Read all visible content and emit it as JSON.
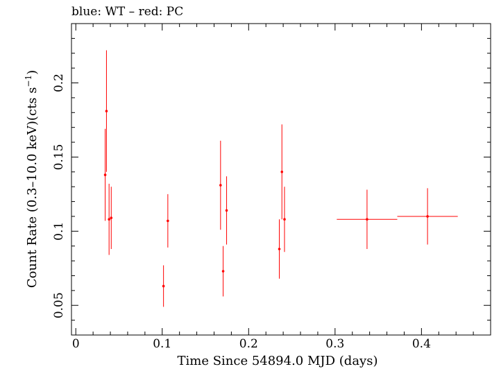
{
  "chart_data": {
    "type": "scatter",
    "title": "blue: WT – red: PC",
    "xlabel": "Time Since 54894.0 MJD (days)",
    "ylabel_main": "Count Rate (0.3–10.0 keV)(cts s",
    "ylabel_sup": "−1",
    "ylabel_end": ")",
    "xlim": [
      -0.005,
      0.48
    ],
    "ylim": [
      0.03,
      0.24
    ],
    "x_ticks": [
      0,
      0.1,
      0.2,
      0.3,
      0.4
    ],
    "x_tick_labels": [
      "0",
      "0.1",
      "0.2",
      "0.3",
      "0.4"
    ],
    "y_ticks": [
      0.05,
      0.1,
      0.15,
      0.2
    ],
    "y_tick_labels": [
      "0.05",
      "0.1",
      "0.15",
      "0.2"
    ],
    "series_color": "#ff0000",
    "series": [
      {
        "points": [
          {
            "x": 0.034,
            "y": 0.138,
            "xerr_lo": 0.0005,
            "xerr_hi": 0.0005,
            "yerr_lo": 0.031,
            "yerr_hi": 0.031
          },
          {
            "x": 0.0355,
            "y": 0.181,
            "xerr_lo": 0.0005,
            "xerr_hi": 0.0005,
            "yerr_lo": 0.041,
            "yerr_hi": 0.041
          },
          {
            "x": 0.0385,
            "y": 0.108,
            "xerr_lo": 0.0005,
            "xerr_hi": 0.0005,
            "yerr_lo": 0.024,
            "yerr_hi": 0.024
          },
          {
            "x": 0.041,
            "y": 0.109,
            "xerr_lo": 0.0005,
            "xerr_hi": 0.0005,
            "yerr_lo": 0.021,
            "yerr_hi": 0.021
          },
          {
            "x": 0.1015,
            "y": 0.063,
            "xerr_lo": 0.001,
            "xerr_hi": 0.001,
            "yerr_lo": 0.014,
            "yerr_hi": 0.014
          },
          {
            "x": 0.1065,
            "y": 0.107,
            "xerr_lo": 0.001,
            "xerr_hi": 0.001,
            "yerr_lo": 0.018,
            "yerr_hi": 0.018
          },
          {
            "x": 0.1675,
            "y": 0.131,
            "xerr_lo": 0.001,
            "xerr_hi": 0.001,
            "yerr_lo": 0.03,
            "yerr_hi": 0.03
          },
          {
            "x": 0.1705,
            "y": 0.073,
            "xerr_lo": 0.001,
            "xerr_hi": 0.001,
            "yerr_lo": 0.017,
            "yerr_hi": 0.017
          },
          {
            "x": 0.1745,
            "y": 0.114,
            "xerr_lo": 0.001,
            "xerr_hi": 0.001,
            "yerr_lo": 0.023,
            "yerr_hi": 0.023
          },
          {
            "x": 0.2355,
            "y": 0.088,
            "xerr_lo": 0.001,
            "xerr_hi": 0.001,
            "yerr_lo": 0.02,
            "yerr_hi": 0.02
          },
          {
            "x": 0.2385,
            "y": 0.14,
            "xerr_lo": 0.001,
            "xerr_hi": 0.001,
            "yerr_lo": 0.032,
            "yerr_hi": 0.032
          },
          {
            "x": 0.2415,
            "y": 0.108,
            "xerr_lo": 0.001,
            "xerr_hi": 0.001,
            "yerr_lo": 0.022,
            "yerr_hi": 0.022
          },
          {
            "x": 0.337,
            "y": 0.108,
            "xerr_lo": 0.035,
            "xerr_hi": 0.035,
            "yerr_lo": 0.02,
            "yerr_hi": 0.02
          },
          {
            "x": 0.407,
            "y": 0.11,
            "xerr_lo": 0.035,
            "xerr_hi": 0.035,
            "yerr_lo": 0.019,
            "yerr_hi": 0.019
          }
        ]
      }
    ]
  }
}
